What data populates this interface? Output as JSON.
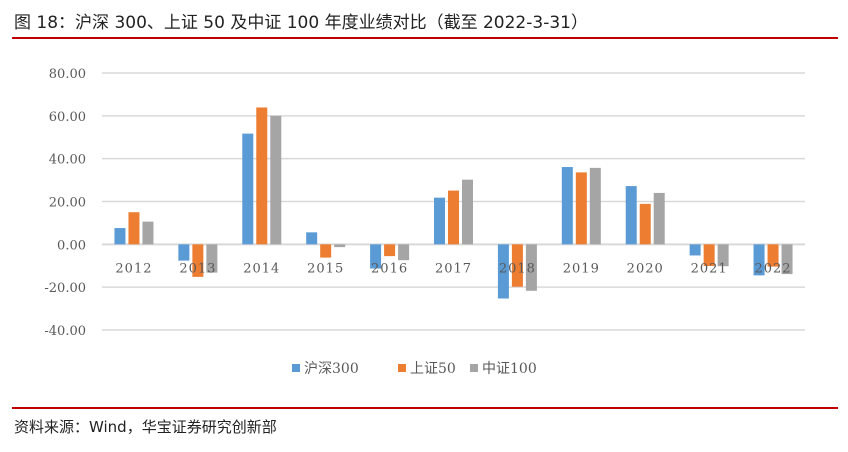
{
  "title": "图 18：沪深 300、上证 50 及中证 100 年度业绩对比（截至 2022-3-31）",
  "source": "资料来源：Wind，华宝证券研究创新部",
  "chart_data": {
    "type": "bar",
    "title": "沪深 300、上证 50 及中证 100 年度业绩对比（截至 2022-3-31）",
    "xlabel": "",
    "ylabel": "",
    "ylim": [
      -40,
      80
    ],
    "yticks": [
      80,
      60,
      40,
      20,
      0,
      -20,
      -40
    ],
    "ytick_labels": [
      "80.00",
      "60.00",
      "40.00",
      "20.00",
      "0.00",
      "-20.00",
      "-40.00"
    ],
    "grid": true,
    "legend_position": "bottom",
    "categories": [
      "2012",
      "2013",
      "2014",
      "2015",
      "2016",
      "2017",
      "2018",
      "2019",
      "2020",
      "2021",
      "2022"
    ],
    "series": [
      {
        "name": "沪深300",
        "color": "#5b9bd5",
        "values": [
          7.6,
          -7.6,
          51.7,
          5.6,
          -11.3,
          21.8,
          -25.3,
          36.1,
          27.2,
          -5.2,
          -14.5
        ]
      },
      {
        "name": "上证50",
        "color": "#ed7d31",
        "values": [
          15.0,
          -15.2,
          63.9,
          -6.2,
          -5.5,
          25.1,
          -19.8,
          33.6,
          18.9,
          -10.1,
          -10.4
        ]
      },
      {
        "name": "中证100",
        "color": "#a5a5a5",
        "values": [
          10.6,
          -13.2,
          60.0,
          -1.3,
          -7.4,
          30.2,
          -21.7,
          35.7,
          24.0,
          -10.2,
          -13.9
        ]
      }
    ]
  }
}
